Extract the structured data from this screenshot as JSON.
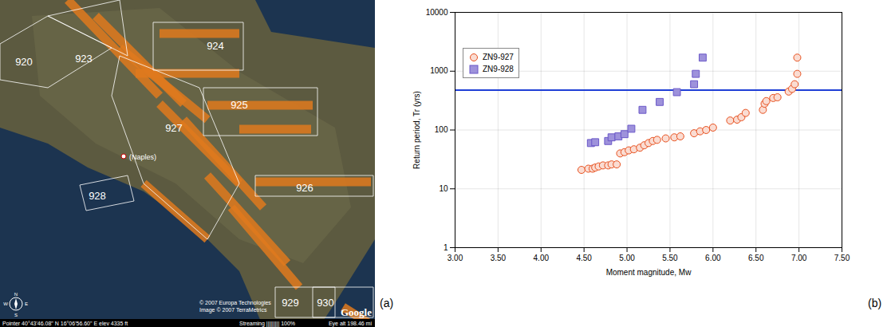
{
  "panel_labels": {
    "map": "(a)",
    "chart": "(b)"
  },
  "map": {
    "zones": [
      "920",
      "923",
      "924",
      "927",
      "925",
      "928",
      "926",
      "929",
      "930"
    ],
    "place": "(Naples)",
    "credits": [
      "© 2007 Europa Technologies",
      "Image © 2007 TerraMetrics"
    ],
    "logo": "Google",
    "compass": [
      "N",
      "E",
      "S",
      "W"
    ],
    "status": [
      "Pointer 40°43'46.08\" N  16°06'56.60\" E  elev 4335 ft",
      "Streaming ||||||||| 100%",
      "Eye alt 198.46 mi"
    ]
  },
  "chart_data": {
    "type": "scatter",
    "x_label": "Moment magnitude, Mw",
    "y_label": "Return period, Tr (yrs)",
    "log": "y",
    "grid": true,
    "legend": "top-left",
    "xlim": [
      3,
      7.5
    ],
    "xticks": [
      {
        "value": 3,
        "label": "3.00"
      },
      {
        "value": 3.5,
        "label": "3.50"
      },
      {
        "value": 4,
        "label": "4.00"
      },
      {
        "value": 4.5,
        "label": "4.50"
      },
      {
        "value": 5,
        "label": "5.00"
      },
      {
        "value": 5.5,
        "label": "5.50"
      },
      {
        "value": 6,
        "label": "6.00"
      },
      {
        "value": 6.5,
        "label": "6.50"
      },
      {
        "value": 7,
        "label": "7.00"
      },
      {
        "value": 7.5,
        "label": "7.50"
      }
    ],
    "ylim": [
      1,
      10000
    ],
    "yticks": [
      1,
      10,
      100,
      1000,
      10000
    ],
    "reference_line": 475,
    "series": [
      {
        "name": "ZN9-927",
        "color": "#e8501e",
        "marker": "circle",
        "x": [
          4.47,
          4.55,
          4.6,
          4.63,
          4.67,
          4.72,
          4.78,
          4.82,
          4.88,
          4.92,
          4.97,
          5.02,
          5.08,
          5.15,
          5.2,
          5.25,
          5.3,
          5.35,
          5.45,
          5.55,
          5.62,
          5.78,
          5.85,
          5.92,
          6.0,
          6.2,
          6.28,
          6.33,
          6.38,
          6.58,
          6.6,
          6.62,
          6.7,
          6.75,
          6.88,
          6.92,
          6.95,
          6.98,
          6.98
        ],
        "values": [
          21,
          22,
          22,
          23,
          24,
          25,
          25,
          26,
          26,
          40,
          42,
          45,
          47,
          50,
          55,
          60,
          65,
          68,
          72,
          75,
          78,
          88,
          95,
          100,
          110,
          145,
          150,
          165,
          195,
          220,
          280,
          310,
          350,
          360,
          450,
          500,
          600,
          900,
          1700
        ]
      },
      {
        "name": "ZN9-928",
        "color": "#6a58c8",
        "marker": "square",
        "x": [
          4.58,
          4.63,
          4.78,
          4.82,
          4.9,
          4.97,
          5.05,
          5.18,
          5.38,
          5.58,
          5.78,
          5.8,
          5.88
        ],
        "values": [
          60,
          62,
          65,
          75,
          78,
          85,
          105,
          220,
          300,
          440,
          600,
          900,
          1700
        ]
      }
    ]
  }
}
